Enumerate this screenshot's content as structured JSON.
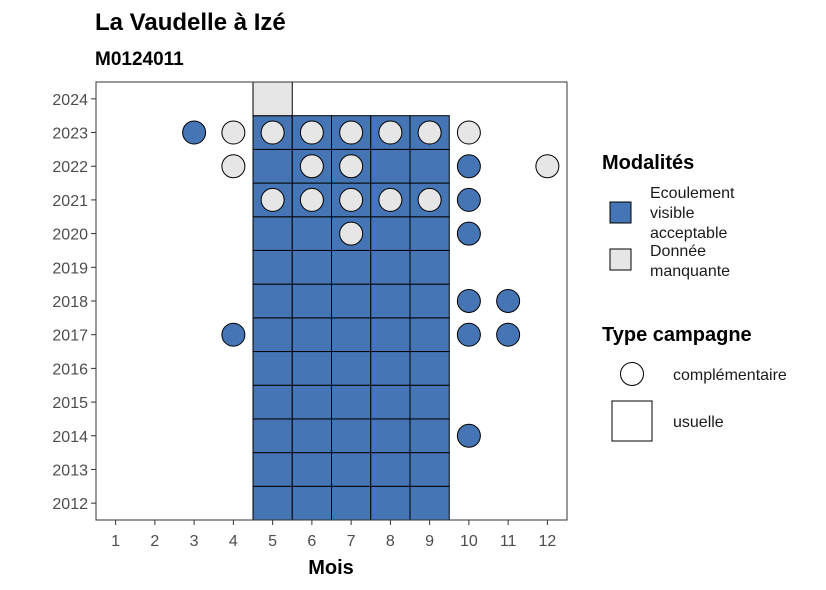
{
  "chart_data": {
    "type": "heatmap",
    "title": "La Vaudelle à Izé",
    "subtitle": "M0124011",
    "xlabel": "Mois",
    "ylabel": "",
    "x_ticks": [
      "1",
      "2",
      "3",
      "4",
      "5",
      "6",
      "7",
      "8",
      "9",
      "10",
      "11",
      "12"
    ],
    "y_ticks": [
      "2012",
      "2013",
      "2014",
      "2015",
      "2016",
      "2017",
      "2018",
      "2019",
      "2020",
      "2021",
      "2022",
      "2023",
      "2024"
    ],
    "xlim": [
      0.5,
      12.5
    ],
    "ylim": [
      2011.5,
      2024.5
    ],
    "grid": false,
    "colors": {
      "ecoulement": "#4575b4",
      "manquante": "#e6e6e6"
    },
    "legend": {
      "placement": "right",
      "modalites_title": "Modalités",
      "modalites": [
        {
          "key": "ecoulement",
          "label_lines": [
            "Ecoulement",
            "visible",
            "acceptable"
          ]
        },
        {
          "key": "manquante",
          "label_lines": [
            "Donnée",
            "manquante"
          ]
        }
      ],
      "type_title": "Type campagne",
      "types": [
        {
          "shape": "circle",
          "label": "complémentaire"
        },
        {
          "shape": "square",
          "label": "usuelle"
        }
      ]
    },
    "usuelle": [
      {
        "year": 2012,
        "month": 5,
        "m": "ecoulement"
      },
      {
        "year": 2012,
        "month": 6,
        "m": "ecoulement"
      },
      {
        "year": 2012,
        "month": 7,
        "m": "ecoulement"
      },
      {
        "year": 2012,
        "month": 8,
        "m": "ecoulement"
      },
      {
        "year": 2012,
        "month": 9,
        "m": "ecoulement"
      },
      {
        "year": 2013,
        "month": 5,
        "m": "ecoulement"
      },
      {
        "year": 2013,
        "month": 6,
        "m": "ecoulement"
      },
      {
        "year": 2013,
        "month": 7,
        "m": "ecoulement"
      },
      {
        "year": 2013,
        "month": 8,
        "m": "ecoulement"
      },
      {
        "year": 2013,
        "month": 9,
        "m": "ecoulement"
      },
      {
        "year": 2014,
        "month": 5,
        "m": "ecoulement"
      },
      {
        "year": 2014,
        "month": 6,
        "m": "ecoulement"
      },
      {
        "year": 2014,
        "month": 7,
        "m": "ecoulement"
      },
      {
        "year": 2014,
        "month": 8,
        "m": "ecoulement"
      },
      {
        "year": 2014,
        "month": 9,
        "m": "ecoulement"
      },
      {
        "year": 2015,
        "month": 5,
        "m": "ecoulement"
      },
      {
        "year": 2015,
        "month": 6,
        "m": "ecoulement"
      },
      {
        "year": 2015,
        "month": 7,
        "m": "ecoulement"
      },
      {
        "year": 2015,
        "month": 8,
        "m": "ecoulement"
      },
      {
        "year": 2015,
        "month": 9,
        "m": "ecoulement"
      },
      {
        "year": 2016,
        "month": 5,
        "m": "ecoulement"
      },
      {
        "year": 2016,
        "month": 6,
        "m": "ecoulement"
      },
      {
        "year": 2016,
        "month": 7,
        "m": "ecoulement"
      },
      {
        "year": 2016,
        "month": 8,
        "m": "ecoulement"
      },
      {
        "year": 2016,
        "month": 9,
        "m": "ecoulement"
      },
      {
        "year": 2017,
        "month": 5,
        "m": "ecoulement"
      },
      {
        "year": 2017,
        "month": 6,
        "m": "ecoulement"
      },
      {
        "year": 2017,
        "month": 7,
        "m": "ecoulement"
      },
      {
        "year": 2017,
        "month": 8,
        "m": "ecoulement"
      },
      {
        "year": 2017,
        "month": 9,
        "m": "ecoulement"
      },
      {
        "year": 2018,
        "month": 5,
        "m": "ecoulement"
      },
      {
        "year": 2018,
        "month": 6,
        "m": "ecoulement"
      },
      {
        "year": 2018,
        "month": 7,
        "m": "ecoulement"
      },
      {
        "year": 2018,
        "month": 8,
        "m": "ecoulement"
      },
      {
        "year": 2018,
        "month": 9,
        "m": "ecoulement"
      },
      {
        "year": 2019,
        "month": 5,
        "m": "ecoulement"
      },
      {
        "year": 2019,
        "month": 6,
        "m": "ecoulement"
      },
      {
        "year": 2019,
        "month": 7,
        "m": "ecoulement"
      },
      {
        "year": 2019,
        "month": 8,
        "m": "ecoulement"
      },
      {
        "year": 2019,
        "month": 9,
        "m": "ecoulement"
      },
      {
        "year": 2020,
        "month": 5,
        "m": "ecoulement"
      },
      {
        "year": 2020,
        "month": 6,
        "m": "ecoulement"
      },
      {
        "year": 2020,
        "month": 7,
        "m": "ecoulement"
      },
      {
        "year": 2020,
        "month": 8,
        "m": "ecoulement"
      },
      {
        "year": 2020,
        "month": 9,
        "m": "ecoulement"
      },
      {
        "year": 2021,
        "month": 5,
        "m": "ecoulement"
      },
      {
        "year": 2021,
        "month": 6,
        "m": "ecoulement"
      },
      {
        "year": 2021,
        "month": 7,
        "m": "ecoulement"
      },
      {
        "year": 2021,
        "month": 8,
        "m": "ecoulement"
      },
      {
        "year": 2021,
        "month": 9,
        "m": "ecoulement"
      },
      {
        "year": 2022,
        "month": 5,
        "m": "ecoulement"
      },
      {
        "year": 2022,
        "month": 6,
        "m": "ecoulement"
      },
      {
        "year": 2022,
        "month": 7,
        "m": "ecoulement"
      },
      {
        "year": 2022,
        "month": 8,
        "m": "ecoulement"
      },
      {
        "year": 2022,
        "month": 9,
        "m": "ecoulement"
      },
      {
        "year": 2023,
        "month": 5,
        "m": "ecoulement"
      },
      {
        "year": 2023,
        "month": 6,
        "m": "ecoulement"
      },
      {
        "year": 2023,
        "month": 7,
        "m": "ecoulement"
      },
      {
        "year": 2023,
        "month": 8,
        "m": "ecoulement"
      },
      {
        "year": 2023,
        "month": 9,
        "m": "ecoulement"
      },
      {
        "year": 2024,
        "month": 5,
        "m": "manquante"
      }
    ],
    "complementaire": [
      {
        "year": 2023,
        "month": 3,
        "m": "ecoulement"
      },
      {
        "year": 2023,
        "month": 4,
        "m": "manquante"
      },
      {
        "year": 2023,
        "month": 5,
        "m": "manquante"
      },
      {
        "year": 2023,
        "month": 6,
        "m": "manquante"
      },
      {
        "year": 2023,
        "month": 7,
        "m": "manquante"
      },
      {
        "year": 2023,
        "month": 8,
        "m": "manquante"
      },
      {
        "year": 2023,
        "month": 9,
        "m": "manquante"
      },
      {
        "year": 2023,
        "month": 10,
        "m": "manquante"
      },
      {
        "year": 2022,
        "month": 4,
        "m": "manquante"
      },
      {
        "year": 2022,
        "month": 6,
        "m": "manquante"
      },
      {
        "year": 2022,
        "month": 7,
        "m": "manquante"
      },
      {
        "year": 2022,
        "month": 10,
        "m": "ecoulement"
      },
      {
        "year": 2022,
        "month": 12,
        "m": "manquante"
      },
      {
        "year": 2021,
        "month": 5,
        "m": "manquante"
      },
      {
        "year": 2021,
        "month": 6,
        "m": "manquante"
      },
      {
        "year": 2021,
        "month": 7,
        "m": "manquante"
      },
      {
        "year": 2021,
        "month": 8,
        "m": "manquante"
      },
      {
        "year": 2021,
        "month": 9,
        "m": "manquante"
      },
      {
        "year": 2021,
        "month": 10,
        "m": "ecoulement"
      },
      {
        "year": 2020,
        "month": 7,
        "m": "manquante"
      },
      {
        "year": 2020,
        "month": 10,
        "m": "ecoulement"
      },
      {
        "year": 2018,
        "month": 10,
        "m": "ecoulement"
      },
      {
        "year": 2018,
        "month": 11,
        "m": "ecoulement"
      },
      {
        "year": 2017,
        "month": 4,
        "m": "ecoulement"
      },
      {
        "year": 2017,
        "month": 10,
        "m": "ecoulement"
      },
      {
        "year": 2017,
        "month": 11,
        "m": "ecoulement"
      },
      {
        "year": 2014,
        "month": 10,
        "m": "ecoulement"
      }
    ]
  }
}
